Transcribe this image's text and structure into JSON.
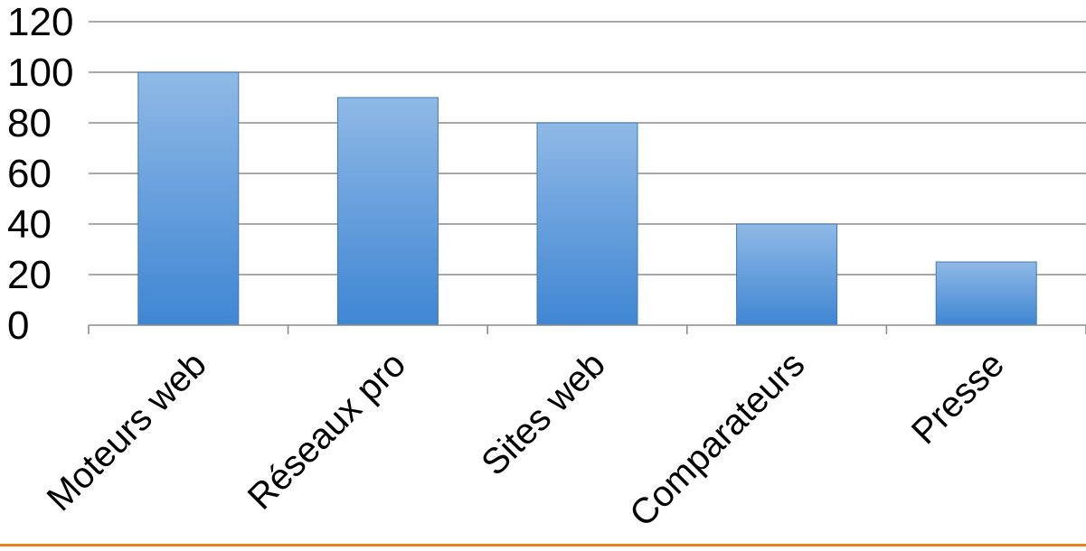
{
  "chart_data": {
    "type": "bar",
    "title": "",
    "xlabel": "",
    "ylabel": "",
    "categories": [
      "Moteurs web",
      "Réseaux pro",
      "Sites web",
      "Comparateurs",
      "Presse"
    ],
    "values": [
      100,
      90,
      80,
      40,
      25
    ],
    "ylim": [
      0,
      120
    ],
    "yticks": [
      0,
      20,
      40,
      60,
      80,
      100,
      120
    ],
    "grid": true,
    "legend": "none",
    "colors": {
      "bar_top": "#8fb9e6",
      "bar_bottom": "#3f86d3",
      "bar_stroke": "#3f78b5",
      "gridline": "#8c8c8c",
      "bottom_rule": "#e8821e"
    }
  }
}
